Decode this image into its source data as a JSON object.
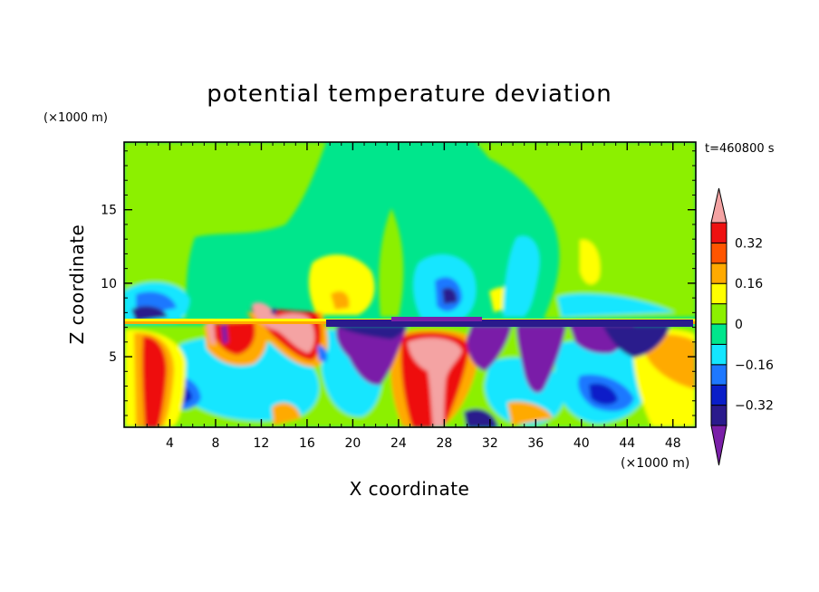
{
  "chart_data": {
    "type": "heatmap",
    "title": "potential temperature deviation",
    "xlabel": "X coordinate",
    "ylabel": "Z coordinate",
    "x_unit": "(×1000 m)",
    "y_unit": "(×1000 m)",
    "time_label": "t=460800 s",
    "xlim": [
      0,
      50
    ],
    "ylim": [
      0.2,
      19.6
    ],
    "x_ticks": [
      4,
      8,
      12,
      16,
      20,
      24,
      28,
      32,
      36,
      40,
      44,
      48
    ],
    "y_ticks": [
      5,
      10,
      15
    ],
    "colorbar": {
      "levels": [
        -0.4,
        -0.32,
        -0.24,
        -0.16,
        -0.08,
        0,
        0.08,
        0.16,
        0.24,
        0.32,
        0.4
      ],
      "colors": [
        "#7a1fa8",
        "#2a1a8c",
        "#0a1ec8",
        "#1e78ff",
        "#14e6ff",
        "#00e68c",
        "#8cf000",
        "#ffff00",
        "#ffaa00",
        "#ff5500",
        "#ee1111",
        "#f4a3a3"
      ],
      "labeled_levels": [
        0.32,
        0.16,
        0,
        -0.16,
        -0.32
      ],
      "labels": [
        "0.32",
        "0.16",
        "0",
        "−0.16",
        "−0.32"
      ],
      "extend": "both"
    }
  }
}
